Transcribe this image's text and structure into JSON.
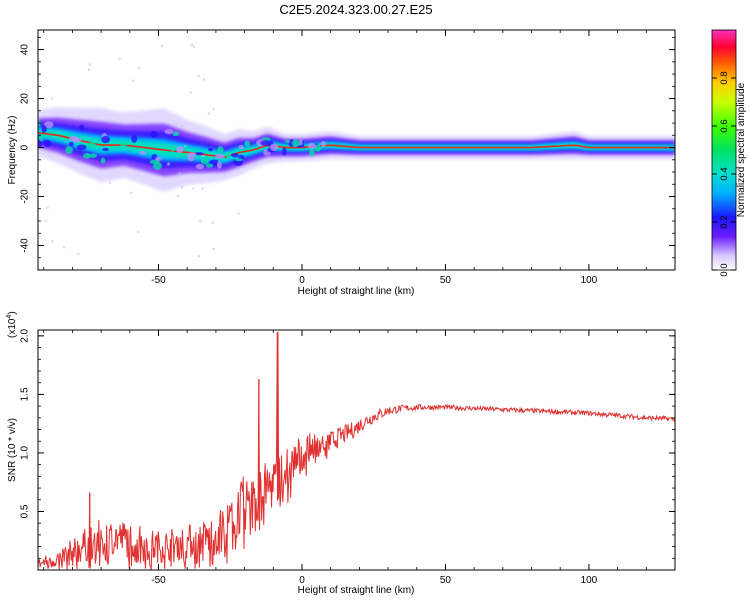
{
  "title": "C2E5.2024.323.00.27.E25",
  "colors": {
    "snr_line": "#e03030",
    "ridge_strong": "#ff1a00",
    "ridge_mid": "#00e0c0",
    "ridge_edge": "#3a1cff",
    "ridge_halo": "#c9b8ff",
    "axis": "#000000"
  },
  "chart_data": [
    {
      "type": "heatmap",
      "title": "C2E5.2024.323.00.27.E25",
      "xlabel": "Height of straight line (km)",
      "ylabel": "Frequency (Hz)",
      "xlim": [
        -92,
        130
      ],
      "ylim": [
        -50,
        48
      ],
      "xticks": [
        -50,
        0,
        50,
        100
      ],
      "yticks": [
        -40,
        -20,
        0,
        20,
        40
      ],
      "colorbar": {
        "label": "Normalized spectral amplitude",
        "range": [
          0,
          1
        ],
        "ticks": [
          0.0,
          0.2,
          0.4,
          0.6,
          0.8
        ],
        "tick_labels": [
          "0.0",
          "0.2",
          "0.4",
          "0.6",
          "0.8"
        ]
      },
      "ridge": {
        "x": [
          -92,
          -85,
          -78,
          -70,
          -62,
          -55,
          -48,
          -40,
          -33,
          -27,
          -22,
          -17,
          -12,
          -6,
          0,
          10,
          20,
          40,
          60,
          80,
          95,
          100,
          105,
          130
        ],
        "center_hz": [
          6,
          5,
          3,
          1,
          1,
          0,
          -1,
          -2,
          -3,
          -4,
          -2,
          -1,
          1,
          0,
          0,
          1,
          0,
          0,
          0,
          0,
          1,
          0,
          0,
          0
        ],
        "halfwidth_hz": [
          5,
          6,
          7,
          8,
          7,
          8,
          9,
          7,
          6,
          5,
          5,
          4,
          4,
          3,
          3,
          3,
          2.5,
          2.5,
          2.5,
          2.5,
          3,
          2.5,
          2.5,
          2.5
        ]
      }
    },
    {
      "type": "line",
      "xlabel": "Height of straight line (km)",
      "ylabel": "SNR (10 * v/v)",
      "y_multiplier_label": "(x10",
      "y_multiplier_exp": "4",
      "y_multiplier_close": ")",
      "xlim": [
        -92,
        130
      ],
      "ylim": [
        0,
        2.05
      ],
      "xticks": [
        -50,
        0,
        50,
        100
      ],
      "yticks": [
        0.5,
        1.0,
        1.5,
        2.0
      ],
      "ytick_labels": [
        "0.5",
        "1.0",
        "1.5",
        "2.0"
      ],
      "series": [
        {
          "x": [
            -92,
            -85,
            -80,
            -75,
            -70,
            -65,
            -60,
            -55,
            -50,
            -45,
            -40,
            -35,
            -30,
            -27,
            -24,
            -21,
            -18,
            -15,
            -12,
            -9,
            -6,
            -3,
            0,
            3,
            6,
            10,
            14,
            18,
            22,
            26,
            30,
            35,
            40,
            50,
            60,
            70,
            80,
            90,
            100,
            110,
            120,
            130
          ],
          "values": [
            0.05,
            0.1,
            0.15,
            0.22,
            0.28,
            0.28,
            0.26,
            0.22,
            0.2,
            0.22,
            0.24,
            0.26,
            0.3,
            0.35,
            0.45,
            0.55,
            0.6,
            0.62,
            0.7,
            0.78,
            0.85,
            0.92,
            1.0,
            1.05,
            1.08,
            1.1,
            1.15,
            1.2,
            1.27,
            1.32,
            1.36,
            1.38,
            1.39,
            1.39,
            1.38,
            1.37,
            1.36,
            1.35,
            1.34,
            1.32,
            1.3,
            1.29
          ],
          "noise": [
            0.05,
            0.08,
            0.12,
            0.15,
            0.16,
            0.16,
            0.16,
            0.15,
            0.14,
            0.14,
            0.15,
            0.16,
            0.18,
            0.2,
            0.22,
            0.24,
            0.25,
            0.25,
            0.24,
            0.23,
            0.2,
            0.18,
            0.16,
            0.12,
            0.1,
            0.09,
            0.08,
            0.07,
            0.06,
            0.05,
            0.04,
            0.03,
            0.025,
            0.02,
            0.02,
            0.02,
            0.02,
            0.02,
            0.02,
            0.02,
            0.02,
            0.02
          ],
          "spikes": [
            {
              "x": -74,
              "value": 0.66
            },
            {
              "x": -15,
              "value": 1.63
            },
            {
              "x": -8.5,
              "value": 2.03
            }
          ]
        }
      ]
    }
  ]
}
